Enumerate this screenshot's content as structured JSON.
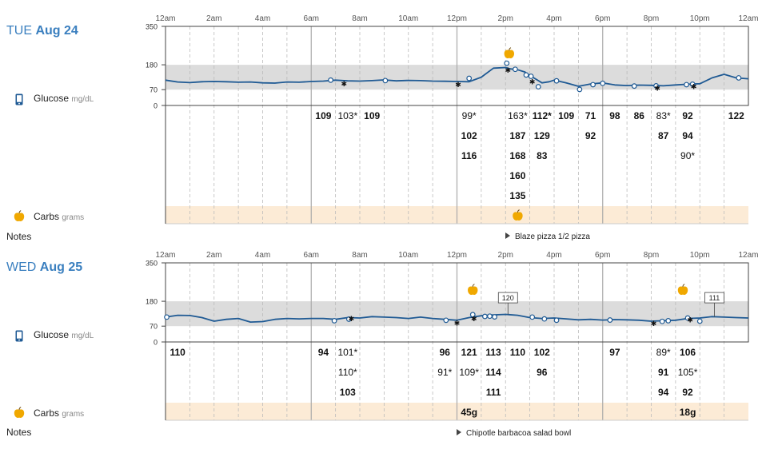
{
  "chart_data": [
    {
      "type": "line",
      "day_name": "TUE",
      "date": "Aug 24",
      "x_tick_labels": [
        "12am",
        "2am",
        "4am",
        "6am",
        "8am",
        "10am",
        "12pm",
        "2pm",
        "4pm",
        "6pm",
        "8pm",
        "10pm",
        "12am"
      ],
      "y_tick_labels": [
        "350",
        "180",
        "70",
        "0"
      ],
      "ylim": [
        0,
        350
      ],
      "target_range": [
        70,
        180
      ],
      "glucose_rows": [
        [
          {
            "text": "109",
            "hour": 6.5,
            "bold": true
          },
          {
            "text": "103*",
            "hour": 7.5,
            "bold": false
          },
          {
            "text": "109",
            "hour": 8.5,
            "bold": true
          },
          {
            "text": "99*",
            "hour": 12.5,
            "bold": false
          },
          {
            "text": "163*",
            "hour": 14.5,
            "bold": false
          },
          {
            "text": "112*",
            "hour": 15.5,
            "bold": true
          },
          {
            "text": "109",
            "hour": 16.5,
            "bold": true
          },
          {
            "text": "71",
            "hour": 17.5,
            "bold": true
          },
          {
            "text": "98",
            "hour": 18.5,
            "bold": true
          },
          {
            "text": "86",
            "hour": 19.5,
            "bold": true
          },
          {
            "text": "83*",
            "hour": 20.5,
            "bold": false
          },
          {
            "text": "92",
            "hour": 21.5,
            "bold": true
          },
          {
            "text": "122",
            "hour": 23.5,
            "bold": true
          }
        ],
        [
          {
            "text": "102",
            "hour": 12.5,
            "bold": true
          },
          {
            "text": "187",
            "hour": 14.5,
            "bold": true
          },
          {
            "text": "129",
            "hour": 15.5,
            "bold": true
          },
          {
            "text": "92",
            "hour": 17.5,
            "bold": true
          },
          {
            "text": "87",
            "hour": 20.5,
            "bold": true
          },
          {
            "text": "94",
            "hour": 21.5,
            "bold": true
          }
        ],
        [
          {
            "text": "116",
            "hour": 12.5,
            "bold": true
          },
          {
            "text": "168",
            "hour": 14.5,
            "bold": true
          },
          {
            "text": "83",
            "hour": 15.5,
            "bold": true
          },
          {
            "text": "90*",
            "hour": 21.5,
            "bold": false
          }
        ],
        [
          {
            "text": "160",
            "hour": 14.5,
            "bold": true
          }
        ],
        [
          {
            "text": "135",
            "hour": 14.5,
            "bold": true
          }
        ]
      ],
      "carbs": [
        {
          "hour": 14.5,
          "text": ""
        }
      ],
      "apples_on_chart": [
        14.15
      ],
      "note": {
        "text": "Blaze pizza 1/2 pizza",
        "hour": 14.1
      },
      "boxed_values": [],
      "series": [
        {
          "name": "Glucose",
          "x": [
            0,
            0.5,
            1,
            1.5,
            2,
            2.5,
            3,
            3.5,
            4,
            4.5,
            5,
            5.5,
            6,
            6.5,
            7,
            7.5,
            8,
            8.5,
            9,
            9.5,
            10,
            10.5,
            11,
            11.5,
            12,
            12.5,
            13,
            13.5,
            14,
            14.2,
            14.5,
            14.8,
            15,
            15.2,
            15.5,
            15.8,
            16,
            16.5,
            17,
            17.5,
            18,
            18.5,
            19,
            19.5,
            20,
            20.5,
            21,
            21.5,
            22,
            22.5,
            23,
            23.5,
            24
          ],
          "y": [
            112,
            104,
            101,
            105,
            106,
            105,
            103,
            104,
            100,
            99,
            104,
            103,
            106,
            108,
            112,
            109,
            108,
            110,
            113,
            109,
            111,
            110,
            108,
            107,
            106,
            105,
            125,
            165,
            168,
            162,
            158,
            148,
            132,
            120,
            100,
            105,
            112,
            100,
            85,
            95,
            100,
            91,
            88,
            90,
            89,
            87,
            91,
            94,
            96,
            122,
            138,
            122,
            118
          ]
        }
      ],
      "markers": [
        {
          "hour": 6.8,
          "value": 112,
          "kind": "circle"
        },
        {
          "hour": 7.35,
          "value": 103,
          "kind": "star"
        },
        {
          "hour": 9.05,
          "value": 110,
          "kind": "circle"
        },
        {
          "hour": 12.05,
          "value": 99,
          "kind": "star"
        },
        {
          "hour": 12.5,
          "value": 120,
          "kind": "circle"
        },
        {
          "hour": 14.05,
          "value": 187,
          "kind": "circle"
        },
        {
          "hour": 14.1,
          "value": 163,
          "kind": "star"
        },
        {
          "hour": 14.4,
          "value": 160,
          "kind": "circle"
        },
        {
          "hour": 14.85,
          "value": 135,
          "kind": "circle"
        },
        {
          "hour": 15.05,
          "value": 129,
          "kind": "circle"
        },
        {
          "hour": 15.1,
          "value": 112,
          "kind": "star"
        },
        {
          "hour": 15.35,
          "value": 83,
          "kind": "circle"
        },
        {
          "hour": 16.1,
          "value": 109,
          "kind": "circle"
        },
        {
          "hour": 17.05,
          "value": 71,
          "kind": "circle"
        },
        {
          "hour": 17.6,
          "value": 92,
          "kind": "circle"
        },
        {
          "hour": 18.0,
          "value": 98,
          "kind": "circle"
        },
        {
          "hour": 19.3,
          "value": 86,
          "kind": "circle"
        },
        {
          "hour": 20.2,
          "value": 87,
          "kind": "circle"
        },
        {
          "hour": 20.25,
          "value": 83,
          "kind": "star"
        },
        {
          "hour": 21.45,
          "value": 92,
          "kind": "circle"
        },
        {
          "hour": 21.7,
          "value": 94,
          "kind": "circle"
        },
        {
          "hour": 21.75,
          "value": 90,
          "kind": "star"
        },
        {
          "hour": 23.6,
          "value": 122,
          "kind": "circle"
        }
      ]
    },
    {
      "type": "line",
      "day_name": "WED",
      "date": "Aug 25",
      "x_tick_labels": [
        "12am",
        "2am",
        "4am",
        "6am",
        "8am",
        "10am",
        "12pm",
        "2pm",
        "4pm",
        "6pm",
        "8pm",
        "10pm",
        "12am"
      ],
      "y_tick_labels": [
        "350",
        "180",
        "70",
        "0"
      ],
      "ylim": [
        0,
        350
      ],
      "target_range": [
        70,
        180
      ],
      "glucose_rows": [
        [
          {
            "text": "110",
            "hour": 0.5,
            "bold": true
          },
          {
            "text": "94",
            "hour": 6.5,
            "bold": true
          },
          {
            "text": "101*",
            "hour": 7.5,
            "bold": false
          },
          {
            "text": "96",
            "hour": 11.5,
            "bold": true
          },
          {
            "text": "121",
            "hour": 12.5,
            "bold": true
          },
          {
            "text": "113",
            "hour": 13.5,
            "bold": true
          },
          {
            "text": "110",
            "hour": 14.5,
            "bold": true
          },
          {
            "text": "102",
            "hour": 15.5,
            "bold": true
          },
          {
            "text": "97",
            "hour": 18.5,
            "bold": true
          },
          {
            "text": "89*",
            "hour": 20.5,
            "bold": false
          },
          {
            "text": "106",
            "hour": 21.5,
            "bold": true
          }
        ],
        [
          {
            "text": "110*",
            "hour": 7.5,
            "bold": false
          },
          {
            "text": "91*",
            "hour": 11.5,
            "bold": false
          },
          {
            "text": "109*",
            "hour": 12.5,
            "bold": false
          },
          {
            "text": "114",
            "hour": 13.5,
            "bold": true
          },
          {
            "text": "96",
            "hour": 15.5,
            "bold": true
          },
          {
            "text": "91",
            "hour": 20.5,
            "bold": true
          },
          {
            "text": "105*",
            "hour": 21.5,
            "bold": false
          }
        ],
        [
          {
            "text": "103",
            "hour": 7.5,
            "bold": true
          },
          {
            "text": "111",
            "hour": 13.5,
            "bold": true
          },
          {
            "text": "94",
            "hour": 20.5,
            "bold": true
          },
          {
            "text": "92",
            "hour": 21.5,
            "bold": true
          }
        ]
      ],
      "carbs": [
        {
          "hour": 12.5,
          "text": "45g"
        },
        {
          "hour": 21.5,
          "text": "18g"
        }
      ],
      "apples_on_chart": [
        12.65,
        21.3
      ],
      "note": {
        "text": "Chipotle barbacoa salad bowl",
        "hour": 12.05
      },
      "boxed_values": [
        {
          "hour": 14.1,
          "value": "120"
        },
        {
          "hour": 22.6,
          "value": "111"
        }
      ],
      "series": [
        {
          "name": "Glucose",
          "x": [
            0,
            0.5,
            1,
            1.5,
            2,
            2.5,
            3,
            3.5,
            4,
            4.5,
            5,
            5.5,
            6,
            6.5,
            7,
            7.5,
            8,
            8.5,
            9,
            9.5,
            10,
            10.5,
            11,
            11.5,
            12,
            12.5,
            13,
            13.5,
            14,
            14.5,
            15,
            15.5,
            16,
            16.5,
            17,
            17.5,
            18,
            18.5,
            19,
            19.5,
            20,
            20.5,
            21,
            21.5,
            22,
            22.5,
            23,
            23.5,
            24
          ],
          "y": [
            110,
            118,
            117,
            108,
            92,
            100,
            104,
            88,
            90,
            100,
            104,
            102,
            104,
            104,
            100,
            108,
            106,
            112,
            110,
            108,
            104,
            110,
            104,
            100,
            96,
            108,
            116,
            120,
            122,
            118,
            108,
            104,
            106,
            102,
            98,
            100,
            97,
            99,
            98,
            96,
            92,
            94,
            96,
            104,
            106,
            112,
            110,
            108,
            106
          ]
        }
      ],
      "markers": [
        {
          "hour": 0.05,
          "value": 110,
          "kind": "circle"
        },
        {
          "hour": 6.95,
          "value": 94,
          "kind": "circle"
        },
        {
          "hour": 7.55,
          "value": 101,
          "kind": "circle"
        },
        {
          "hour": 7.65,
          "value": 110,
          "kind": "star"
        },
        {
          "hour": 11.55,
          "value": 96,
          "kind": "circle"
        },
        {
          "hour": 12.0,
          "value": 91,
          "kind": "star"
        },
        {
          "hour": 12.65,
          "value": 121,
          "kind": "circle"
        },
        {
          "hour": 12.7,
          "value": 109,
          "kind": "star"
        },
        {
          "hour": 13.15,
          "value": 113,
          "kind": "circle"
        },
        {
          "hour": 13.35,
          "value": 114,
          "kind": "circle"
        },
        {
          "hour": 13.55,
          "value": 111,
          "kind": "circle"
        },
        {
          "hour": 15.1,
          "value": 110,
          "kind": "circle"
        },
        {
          "hour": 15.6,
          "value": 102,
          "kind": "circle"
        },
        {
          "hour": 16.1,
          "value": 96,
          "kind": "circle"
        },
        {
          "hour": 18.3,
          "value": 97,
          "kind": "circle"
        },
        {
          "hour": 20.1,
          "value": 89,
          "kind": "star"
        },
        {
          "hour": 20.45,
          "value": 91,
          "kind": "circle"
        },
        {
          "hour": 20.7,
          "value": 94,
          "kind": "circle"
        },
        {
          "hour": 21.5,
          "value": 106,
          "kind": "circle"
        },
        {
          "hour": 21.6,
          "value": 105,
          "kind": "star"
        },
        {
          "hour": 22.0,
          "value": 92,
          "kind": "circle"
        }
      ]
    }
  ],
  "labels": {
    "glucose": "Glucose",
    "glucose_unit": "mg/dL",
    "carbs": "Carbs",
    "carbs_unit": "grams",
    "notes": "Notes"
  },
  "icons": {
    "glucose": "phone-icon",
    "carbs": "apple-icon",
    "note": "play-triangle-icon"
  },
  "colors": {
    "line": "#1f5a94",
    "target_band": "#dcdcdc",
    "carbs_band": "#fcebd6",
    "grid": "#bbbbbb",
    "axis_label": "#555555",
    "date": "#3a7fbf",
    "apple": "#f0a800",
    "phone": "#1f5a94"
  }
}
